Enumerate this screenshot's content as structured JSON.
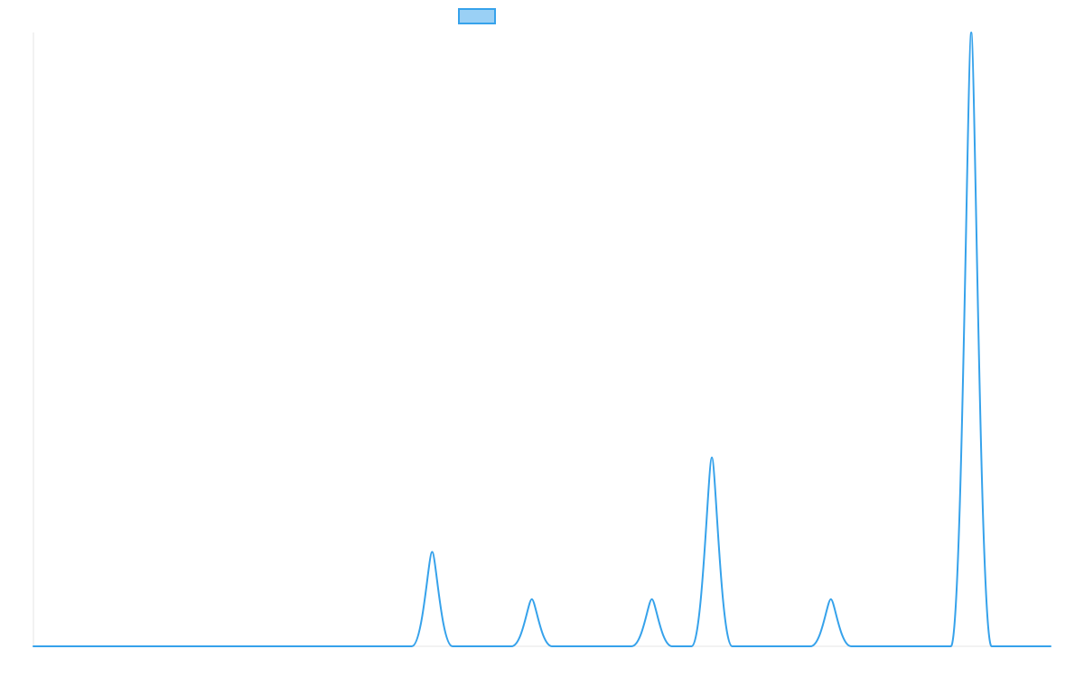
{
  "chart_data": {
    "type": "line",
    "title": "",
    "xlabel": "",
    "ylabel": "",
    "grid": false,
    "legend_position": "top-center",
    "x_range": [
      0,
      100
    ],
    "y_range": [
      0,
      13
    ],
    "series": [
      {
        "name": "",
        "color": "#36A2EB",
        "fill_color": "#9AD0F5",
        "points": [
          {
            "x": 0,
            "y": 0
          },
          {
            "x": 37.2,
            "y": 0
          },
          {
            "x": 39.2,
            "y": 2
          },
          {
            "x": 41.2,
            "y": 0
          },
          {
            "x": 47.0,
            "y": 0
          },
          {
            "x": 49.0,
            "y": 1
          },
          {
            "x": 51.0,
            "y": 0
          },
          {
            "x": 58.8,
            "y": 0
          },
          {
            "x": 60.8,
            "y": 1
          },
          {
            "x": 62.8,
            "y": 0
          },
          {
            "x": 64.7,
            "y": 0
          },
          {
            "x": 66.7,
            "y": 4
          },
          {
            "x": 68.7,
            "y": 0
          },
          {
            "x": 76.4,
            "y": 0
          },
          {
            "x": 78.4,
            "y": 1
          },
          {
            "x": 80.4,
            "y": 0
          },
          {
            "x": 90.2,
            "y": 0
          },
          {
            "x": 92.2,
            "y": 13
          },
          {
            "x": 94.2,
            "y": 0
          },
          {
            "x": 100,
            "y": 0
          }
        ]
      }
    ]
  }
}
